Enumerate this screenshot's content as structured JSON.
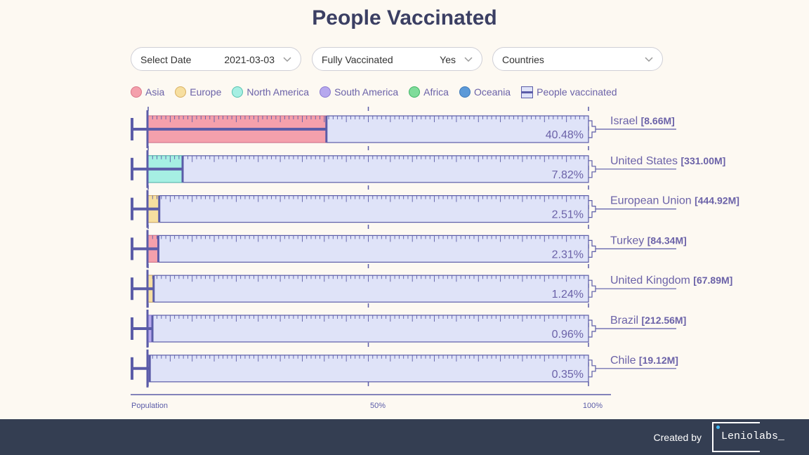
{
  "title": "People Vaccinated",
  "controls": {
    "date": {
      "label": "Select Date",
      "value": "2021-03-03"
    },
    "vaccinated": {
      "label": "Fully Vaccinated",
      "value": "Yes"
    },
    "countries": {
      "label": "Countries"
    }
  },
  "legend": [
    {
      "label": "Asia",
      "color": "#f4a0ac",
      "border": "#d97487"
    },
    {
      "label": "Europe",
      "color": "#f7dfa0",
      "border": "#d8b062"
    },
    {
      "label": "North America",
      "color": "#a6efe3",
      "border": "#56c2ae"
    },
    {
      "label": "South America",
      "color": "#b6a8ee",
      "border": "#8a7ad0"
    },
    {
      "label": "Africa",
      "color": "#7fdc9a",
      "border": "#3fb465"
    },
    {
      "label": "Oceania",
      "color": "#5c9ad8",
      "border": "#3d78b8"
    }
  ],
  "legend_people_label": "People vaccinated",
  "chart_data": {
    "type": "bar",
    "orientation": "horizontal",
    "xlim": [
      0,
      100
    ],
    "x_unit": "%",
    "categories": [
      "Israel",
      "United States",
      "European Union",
      "Turkey",
      "United Kingdom",
      "Brazil",
      "Chile"
    ],
    "populations": [
      "[8.66M]",
      "[331.00M]",
      "[444.92M]",
      "[84.34M]",
      "[67.89M]",
      "[212.56M]",
      "[19.12M]"
    ],
    "continents": [
      "Asia",
      "North America",
      "Europe",
      "Asia",
      "Europe",
      "South America",
      "South America"
    ],
    "values": [
      40.48,
      7.82,
      2.51,
      2.31,
      1.24,
      0.96,
      0.35
    ],
    "value_labels": [
      "40.48%",
      "7.82%",
      "2.51%",
      "2.31%",
      "1.24%",
      "0.96%",
      "0.35%"
    ],
    "axis_labels": [
      "Population",
      "50%",
      "100%"
    ]
  },
  "footer": {
    "created_by": "Created by",
    "logo": "Leniolabs_"
  }
}
